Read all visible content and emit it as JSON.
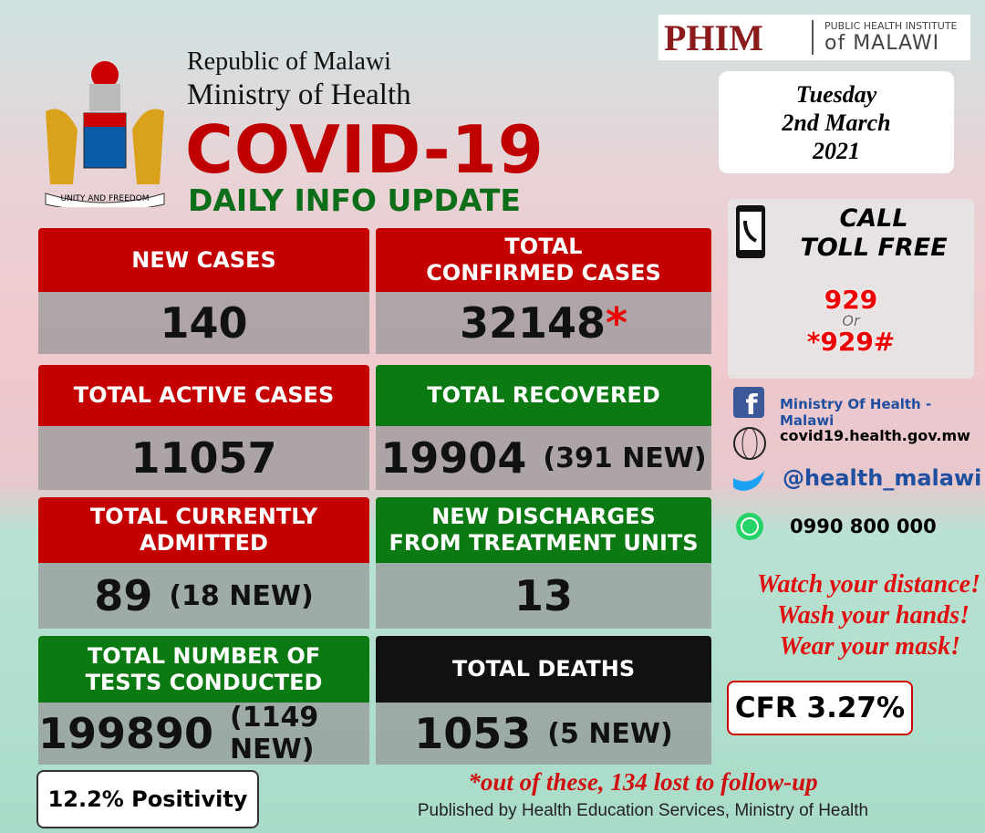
{
  "header": {
    "republic": "Republic of Malawi",
    "ministry": "Ministry of Health",
    "title": "COVID-19",
    "subtitle": "DAILY INFO UPDATE",
    "motto": "UNITY AND FREEDOM"
  },
  "logo": {
    "mark": "PHIM",
    "line1": "PUBLIC HEALTH INSTITUTE",
    "line2": "of MALAWI"
  },
  "date": {
    "weekday": "Tuesday",
    "day_month": "2nd March",
    "year": "2021"
  },
  "tiles": [
    {
      "label": [
        "NEW CASES"
      ],
      "value": "140"
    },
    {
      "label": [
        "TOTAL",
        "CONFIRMED CASES"
      ],
      "value": "32148",
      "marker": "*"
    },
    {
      "label": [
        "TOTAL ACTIVE CASES"
      ],
      "value": "11057"
    },
    {
      "label": [
        "TOTAL RECOVERED"
      ],
      "value": "19904",
      "note": "(391 NEW)"
    },
    {
      "label": [
        "TOTAL CURRENTLY",
        "ADMITTED"
      ],
      "value": "89",
      "note": "(18 NEW)"
    },
    {
      "label": [
        "NEW  DISCHARGES",
        "FROM  TREATMENT UNITS"
      ],
      "value": "13"
    },
    {
      "label": [
        "TOTAL NUMBER OF",
        "TESTS CONDUCTED"
      ],
      "value": "199890",
      "note": "(1149 NEW)"
    },
    {
      "label": [
        "TOTAL DEATHS"
      ],
      "value": "1053",
      "note": "(5 NEW)"
    }
  ],
  "hotline": {
    "call": "CALL",
    "toll_free": "TOLL FREE",
    "number": "929",
    "or": "Or",
    "code": "*929#"
  },
  "social": {
    "facebook": "Ministry Of Health - Malawi",
    "website": "covid19.health.gov.mw",
    "twitter": "@health_malawi",
    "whatsapp": "0990 800 000"
  },
  "messages": [
    "Watch your distance!",
    "Wash your hands!",
    "Wear your mask!"
  ],
  "cfr": "CFR 3.27%",
  "positivity": "12.2% Positivity",
  "footnote": "*out of these, 134 lost to follow-up",
  "publisher": "Published by Health Education Services, Ministry of Health"
}
